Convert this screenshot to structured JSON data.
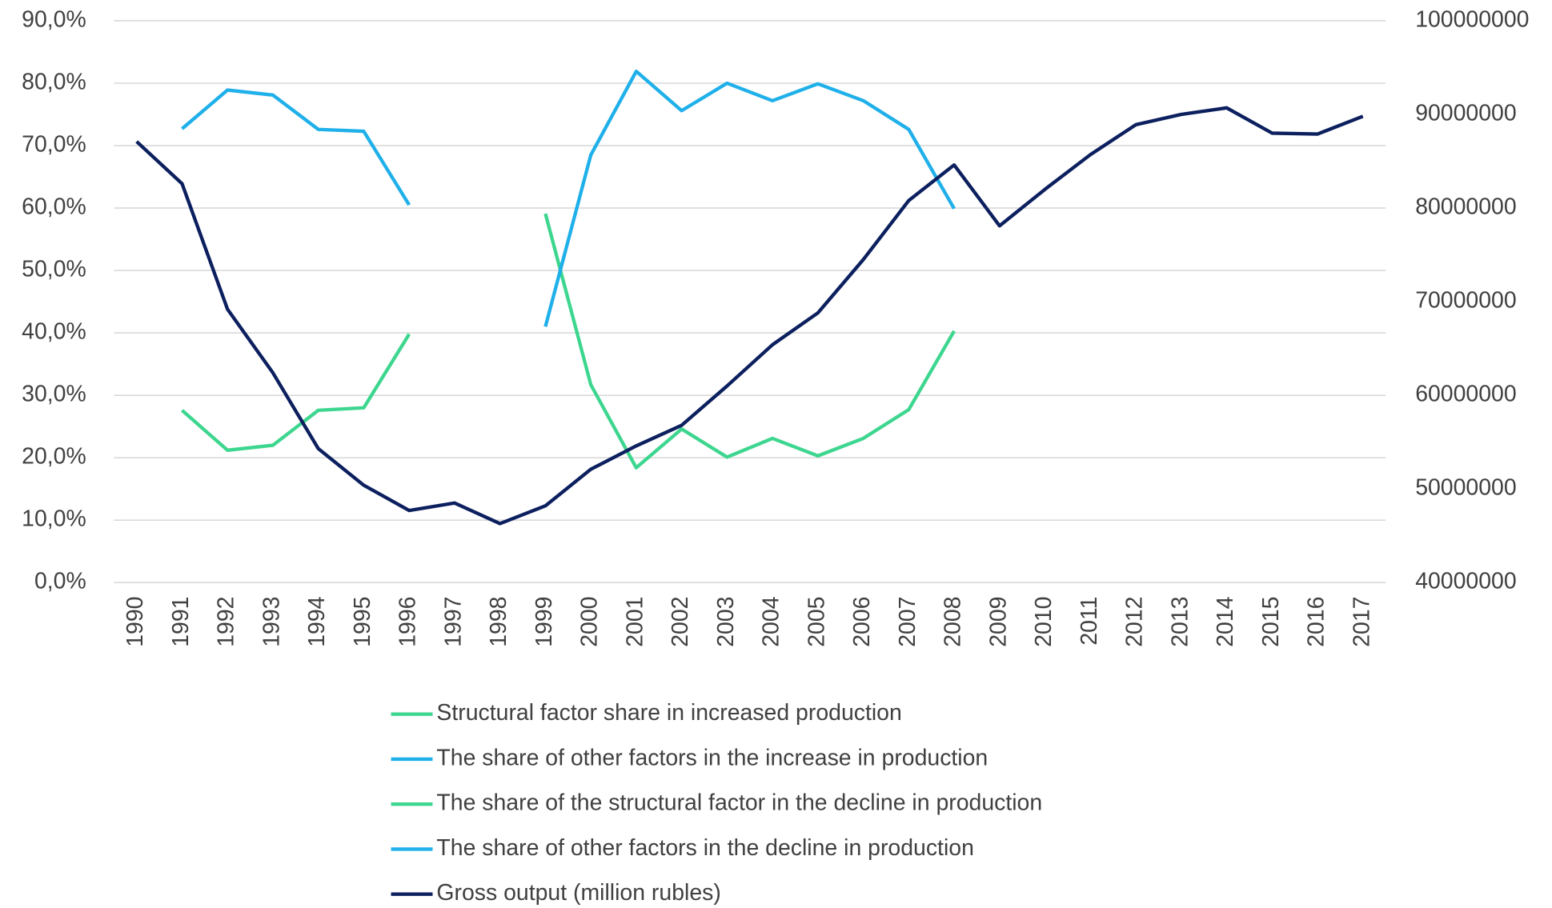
{
  "chart_data": {
    "type": "line",
    "categories": [
      "1990",
      "1991",
      "1992",
      "1993",
      "1994",
      "1995",
      "1996",
      "1997",
      "1998",
      "1999",
      "2000",
      "2001",
      "2002",
      "2003",
      "2004",
      "2005",
      "2006",
      "2007",
      "2008",
      "2009",
      "2010",
      "2011",
      "2012",
      "2013",
      "2014",
      "2015",
      "2016",
      "2017"
    ],
    "ylim": [
      0,
      90
    ],
    "yticks": [
      {
        "value": 0,
        "label": "0,0%"
      },
      {
        "value": 10,
        "label": "10,0%"
      },
      {
        "value": 20,
        "label": "20,0%"
      },
      {
        "value": 30,
        "label": "30,0%"
      },
      {
        "value": 40,
        "label": "40,0%"
      },
      {
        "value": 50,
        "label": "50,0%"
      },
      {
        "value": 60,
        "label": "60,0%"
      },
      {
        "value": 70,
        "label": "70,0%"
      },
      {
        "value": 80,
        "label": "80,0%"
      },
      {
        "value": 90,
        "label": "90,0%"
      }
    ],
    "y2lim": [
      40000000,
      100000000
    ],
    "y2ticks": [
      40000000,
      50000000,
      60000000,
      70000000,
      80000000,
      90000000,
      100000000
    ],
    "grid": true,
    "legend": "bottom",
    "series": [
      {
        "name": "Structural factor share in increased production",
        "color": "#3dd68f",
        "values": [
          null,
          null,
          null,
          null,
          null,
          null,
          null,
          null,
          null,
          59.1,
          31.7,
          18.4,
          24.6,
          20.1,
          23.1,
          20.3,
          23.1,
          27.7,
          40.3,
          null,
          null,
          null,
          null,
          null,
          null,
          null,
          null,
          null
        ]
      },
      {
        "name": "The share of other factors in the increase in production",
        "color": "#1fb0ea",
        "values": [
          null,
          null,
          null,
          null,
          null,
          null,
          null,
          null,
          null,
          41.0,
          68.5,
          81.9,
          75.6,
          80.0,
          77.2,
          79.9,
          77.2,
          72.6,
          59.9,
          null,
          null,
          null,
          null,
          null,
          null,
          null,
          null,
          null
        ]
      },
      {
        "name": "The share of the structural factor in the decline in production",
        "color": "#3dd68f",
        "values": [
          null,
          27.6,
          21.2,
          22.0,
          27.6,
          28.0,
          39.8,
          null,
          null,
          null,
          null,
          null,
          null,
          null,
          null,
          null,
          null,
          null,
          null,
          null,
          null,
          null,
          null,
          null,
          null,
          null,
          null,
          null
        ]
      },
      {
        "name": "The share of other factors in the decline in production",
        "color": "#1fb0ea",
        "values": [
          null,
          72.7,
          78.9,
          78.1,
          72.6,
          72.3,
          60.5,
          null,
          null,
          null,
          null,
          null,
          null,
          null,
          null,
          null,
          null,
          null,
          null,
          null,
          null,
          null,
          null,
          null,
          null,
          null,
          null,
          null
        ]
      },
      {
        "name": "Gross output (million rubles)",
        "color": "#0c1f5e",
        "axis": "y2",
        "values": [
          87100000,
          82600000,
          69200000,
          62400000,
          54300000,
          50400000,
          47700000,
          48500000,
          46300000,
          48200000,
          52100000,
          54600000,
          56800000,
          61000000,
          65400000,
          68800000,
          74500000,
          80800000,
          84600000,
          78100000,
          82000000,
          85700000,
          88900000,
          90000000,
          90700000,
          88000000,
          87900000,
          89800000
        ]
      }
    ]
  }
}
